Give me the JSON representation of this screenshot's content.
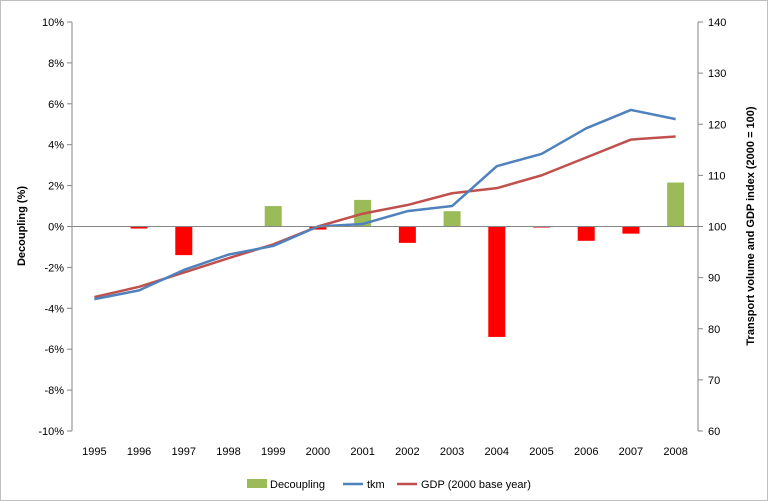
{
  "chart_data": {
    "type": "bar+line",
    "categories": [
      "1995",
      "1996",
      "1997",
      "1998",
      "1999",
      "2000",
      "2001",
      "2002",
      "2003",
      "2004",
      "2005",
      "2006",
      "2007",
      "2008"
    ],
    "left_axis": {
      "label": "Decoupling (%)",
      "ylim": [
        -10,
        10
      ],
      "ticks": [
        -10,
        -8,
        -6,
        -4,
        -2,
        0,
        2,
        4,
        6,
        8,
        10
      ],
      "tick_labels": [
        "-10%",
        "-8%",
        "-6%",
        "-4%",
        "-2%",
        "0%",
        "2%",
        "4%",
        "6%",
        "8%",
        "10%"
      ]
    },
    "right_axis": {
      "label": "Transport volume and GDP index (2000 = 100)",
      "ylim": [
        60,
        140
      ],
      "ticks": [
        60,
        70,
        80,
        90,
        100,
        110,
        120,
        130,
        140
      ],
      "tick_labels": [
        "60",
        "70",
        "80",
        "90",
        "100",
        "110",
        "120",
        "130",
        "140"
      ]
    },
    "bars": {
      "name": "Decoupling",
      "values": [
        null,
        -0.1,
        -1.4,
        null,
        1.0,
        -0.15,
        1.3,
        -0.8,
        0.75,
        -5.4,
        -0.05,
        -0.7,
        -0.35,
        2.15
      ],
      "positive_color": "#9bbb59",
      "negative_color": "#ff0000"
    },
    "series": [
      {
        "name": "tkm",
        "axis": "right",
        "color": "#4f81bd",
        "values": [
          85.8,
          87.5,
          91.5,
          94.5,
          96.2,
          100,
          100.5,
          103,
          104,
          111.8,
          114.2,
          119.2,
          122.8,
          121
        ]
      },
      {
        "name": "GDP (2000 base year)",
        "axis": "right",
        "color": "#c0504d",
        "values": [
          86.2,
          88.2,
          91,
          93.8,
          96.5,
          100,
          102.5,
          104.2,
          106.5,
          107.5,
          110,
          113.5,
          117,
          117.6
        ]
      }
    ],
    "legend_placement": "bottom",
    "grid": false
  }
}
